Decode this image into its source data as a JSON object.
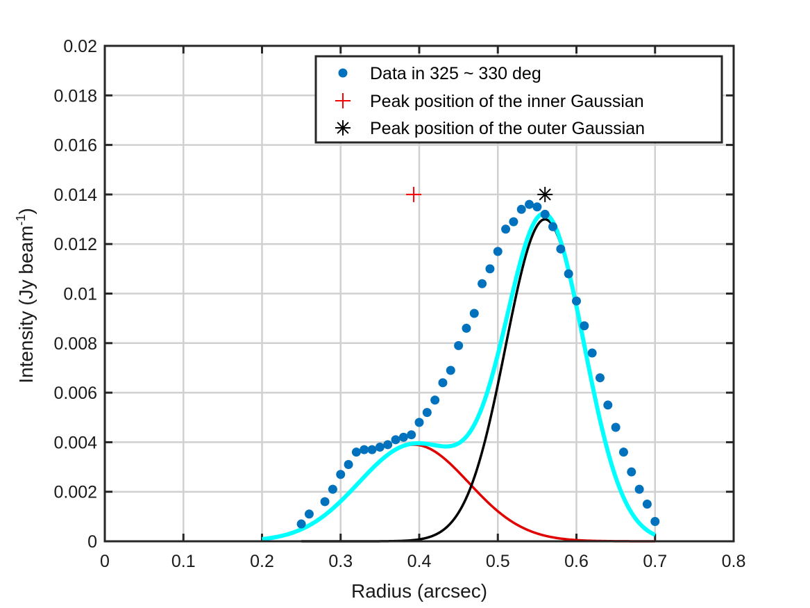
{
  "chart_data": {
    "type": "scatter",
    "title": "",
    "xlabel": "Radius (arcsec)",
    "ylabel_main": "Intensity (Jy beam",
    "ylabel_sup": "-1",
    "ylabel_close": ")",
    "xlim": [
      0,
      0.8
    ],
    "ylim": [
      0,
      0.02
    ],
    "grid": true,
    "legend_position": "top-right",
    "x_ticks": [
      "0",
      "0.1",
      "0.2",
      "0.3",
      "0.4",
      "0.5",
      "0.6",
      "0.7",
      "0.8"
    ],
    "x_tick_values": [
      0,
      0.1,
      0.2,
      0.3,
      0.4,
      0.5,
      0.6,
      0.7,
      0.8
    ],
    "y_ticks": [
      "0",
      "0.002",
      "0.004",
      "0.006",
      "0.008",
      "0.01",
      "0.012",
      "0.014",
      "0.016",
      "0.018",
      "0.02"
    ],
    "y_tick_values": [
      0,
      0.002,
      0.004,
      0.006,
      0.008,
      0.01,
      0.012,
      0.014,
      0.016,
      0.018,
      0.02
    ],
    "legend": [
      "Data in 325 ~ 330 deg",
      "Peak position of the inner Gaussian",
      "Peak position of the outer Gaussian"
    ],
    "colors": {
      "data": "#0072BD",
      "inner_peak": "#FF0000",
      "outer_peak": "#000000",
      "inner_gaussian": "#E00000",
      "outer_gaussian": "#000000",
      "total_fit": "#00FFFF"
    },
    "data_points": {
      "x": [
        0.25,
        0.26,
        0.28,
        0.29,
        0.3,
        0.31,
        0.32,
        0.33,
        0.34,
        0.35,
        0.36,
        0.37,
        0.38,
        0.39,
        0.4,
        0.41,
        0.42,
        0.43,
        0.44,
        0.45,
        0.46,
        0.47,
        0.48,
        0.49,
        0.5,
        0.51,
        0.52,
        0.53,
        0.54,
        0.55,
        0.56,
        0.57,
        0.58,
        0.59,
        0.6,
        0.61,
        0.62,
        0.63,
        0.64,
        0.65,
        0.66,
        0.67,
        0.68,
        0.69,
        0.7
      ],
      "y": [
        0.0007,
        0.0011,
        0.0016,
        0.0021,
        0.0027,
        0.0031,
        0.0036,
        0.0037,
        0.0037,
        0.0038,
        0.0039,
        0.0041,
        0.0042,
        0.0043,
        0.0048,
        0.0052,
        0.0057,
        0.0064,
        0.0069,
        0.0079,
        0.0086,
        0.0092,
        0.0104,
        0.011,
        0.0117,
        0.0126,
        0.0129,
        0.0134,
        0.0136,
        0.0135,
        0.0132,
        0.0127,
        0.0118,
        0.0108,
        0.0097,
        0.0087,
        0.0076,
        0.0066,
        0.0055,
        0.0046,
        0.0036,
        0.0028,
        0.0021,
        0.0015,
        0.0008
      ]
    },
    "inner_peak": {
      "x": 0.393,
      "y": 0.014
    },
    "outer_peak": {
      "x": 0.56,
      "y": 0.014
    },
    "inner_gaussian": {
      "amplitude": 0.0039,
      "center": 0.393,
      "sigma": 0.07,
      "x_range": [
        0.25,
        0.7
      ]
    },
    "outer_gaussian": {
      "amplitude": 0.013,
      "center": 0.56,
      "sigma": 0.05,
      "x_range": [
        0.25,
        0.7
      ]
    },
    "total_fit": {
      "x_range": [
        0.2,
        0.7
      ]
    }
  }
}
